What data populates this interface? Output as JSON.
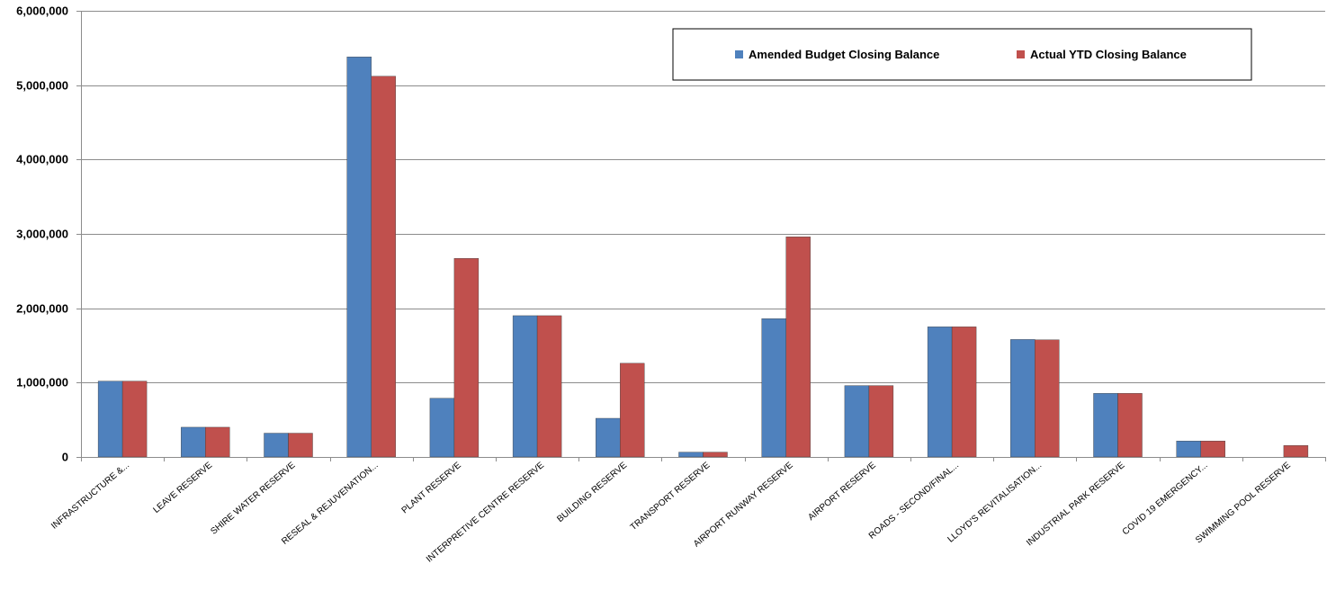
{
  "chart_data": {
    "type": "bar",
    "title": "",
    "xlabel": "",
    "ylabel": "",
    "ylim": [
      0,
      6000000
    ],
    "yticks": [
      0,
      1000000,
      2000000,
      3000000,
      4000000,
      5000000,
      6000000
    ],
    "ytick_labels": [
      "0",
      "1,000,000",
      "2,000,000",
      "3,000,000",
      "4,000,000",
      "5,000,000",
      "6,000,000"
    ],
    "grid": true,
    "legend_position": "top-right",
    "categories": [
      "INFRASTRUCTURE &...",
      "LEAVE RESERVE",
      "SHIRE WATER RESERVE",
      "RESEAL & REJUVENATION...",
      "PLANT RESERVE",
      "INTERPRETIVE CENTRE RESERVE",
      "BUILDING RESERVE",
      "TRANSPORT RESERVE",
      "AIRPORT RUNWAY RESERVE",
      "AIRPORT RESERVE",
      "ROADS - SECOND/FINAL...",
      "LLOYD'S REVITALISATION...",
      "INDUSTRIAL PARK RESERVE",
      "COVID 19 EMERGENCY...",
      "SWIMMING POOL RESERVE"
    ],
    "series": [
      {
        "name": "Amended Budget Closing Balance",
        "color": "#4f81bd",
        "values": [
          1020000,
          400000,
          320000,
          5380000,
          790000,
          1900000,
          520000,
          65000,
          1860000,
          960000,
          1750000,
          1580000,
          855000,
          215000,
          0
        ]
      },
      {
        "name": "Actual YTD Closing Balance",
        "color": "#c0504d",
        "values": [
          1020000,
          400000,
          320000,
          5120000,
          2670000,
          1900000,
          1260000,
          65000,
          2960000,
          960000,
          1750000,
          1575000,
          855000,
          215000,
          155000
        ]
      }
    ]
  }
}
